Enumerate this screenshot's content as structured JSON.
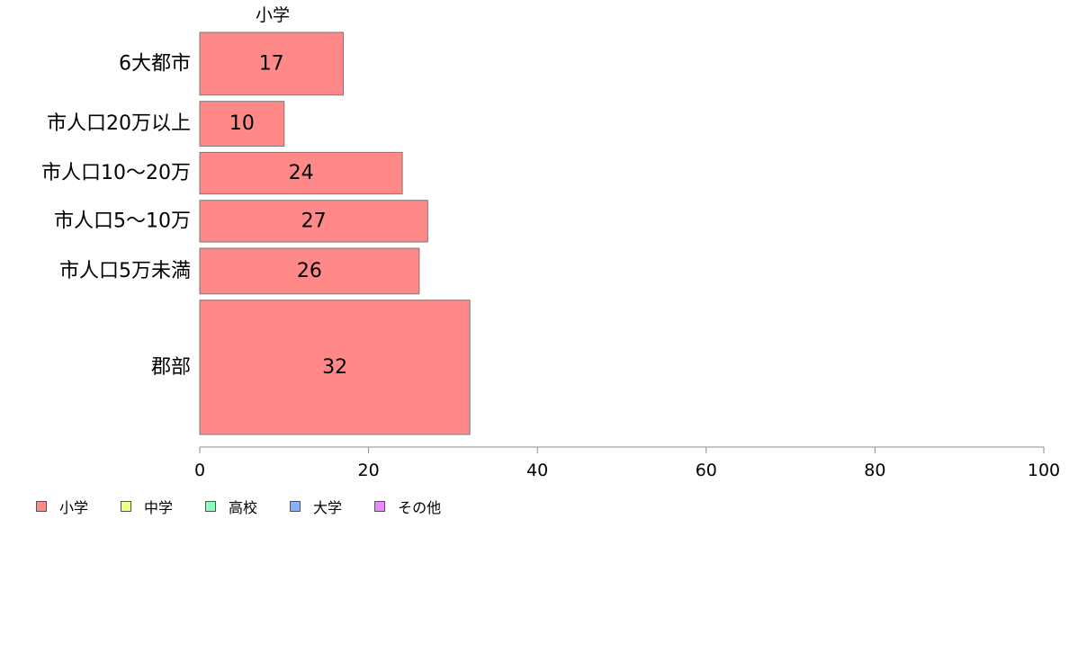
{
  "chart_data": {
    "type": "bar",
    "orientation": "horizontal",
    "series_header": "小学",
    "categories": [
      "6大都市",
      "市人口20万以上",
      "市人口10〜20万",
      "市人口5〜10万",
      "市人口5万未満",
      "郡部"
    ],
    "series": [
      {
        "name": "小学",
        "values": [
          17,
          10,
          24,
          27,
          26,
          32
        ],
        "color": "#ff8888"
      }
    ],
    "bar_weights": [
      14,
      10,
      9.3,
      9.3,
      10.2,
      30
    ],
    "xlim": [
      0,
      100
    ],
    "xticks": [
      0,
      20,
      40,
      60,
      80,
      100
    ],
    "legend": [
      {
        "label": "小学",
        "color": "#ff8888"
      },
      {
        "label": "中学",
        "color": "#ecff88"
      },
      {
        "label": "高校",
        "color": "#88ffbb"
      },
      {
        "label": "大学",
        "color": "#88b2ff"
      },
      {
        "label": "その他",
        "color": "#ea88ff"
      }
    ],
    "legend_position": "bottom-left",
    "grid": false
  }
}
